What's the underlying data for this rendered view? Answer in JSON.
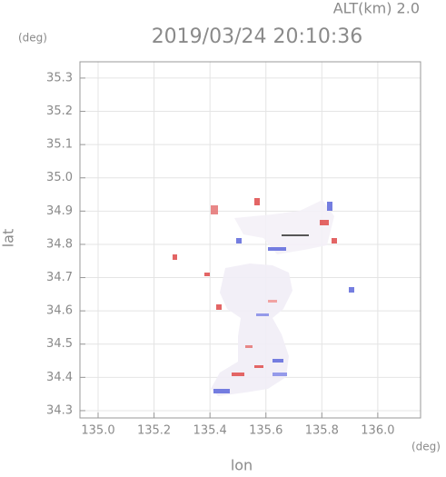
{
  "chart_data": {
    "type": "image",
    "title": "2019/03/24 20:10:36",
    "annotation": "ALT(km) 2.0",
    "xlabel": "lon",
    "ylabel": "lat",
    "xunit": "(deg)",
    "yunit": "(deg)",
    "xlim": [
      134.935,
      136.153
    ],
    "ylim": [
      34.278,
      35.349
    ],
    "xticks": [
      {
        "value": 135,
        "label": "135.0"
      },
      {
        "value": 135.2,
        "label": "135.2"
      },
      {
        "value": 135.4,
        "label": "135.4"
      },
      {
        "value": 135.6,
        "label": "135.6"
      },
      {
        "value": 135.8,
        "label": "135.8"
      },
      {
        "value": 136,
        "label": "136.0"
      }
    ],
    "yticks": [
      34.3,
      34.4,
      34.5,
      34.6,
      34.7,
      34.8,
      34.9,
      {
        "value": 35,
        "label": "35.0"
      },
      35.1,
      35.2,
      35.3
    ],
    "grid": true
  }
}
